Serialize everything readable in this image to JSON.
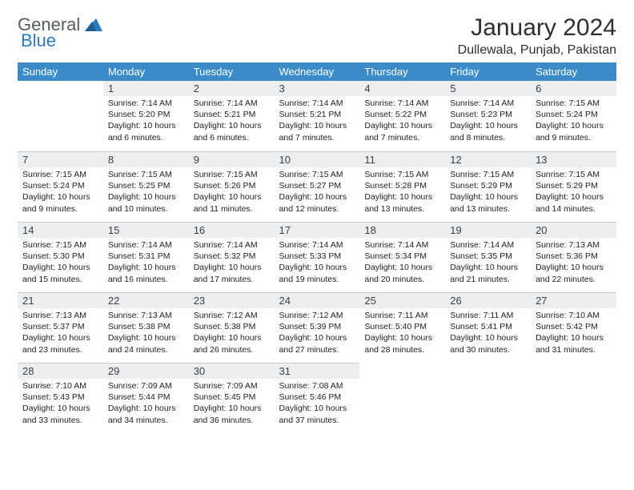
{
  "logo": {
    "brand1": "General",
    "brand2": "Blue"
  },
  "title": {
    "month": "January 2024",
    "location": "Dullewala, Punjab, Pakistan"
  },
  "colors": {
    "header_bg": "#3b8bc9",
    "header_text": "#ffffff",
    "daynum_bg": "#eceef0",
    "border": "#c5cace",
    "body_text": "#222222"
  },
  "weekdays": [
    "Sunday",
    "Monday",
    "Tuesday",
    "Wednesday",
    "Thursday",
    "Friday",
    "Saturday"
  ],
  "first_weekday_index": 1,
  "days": [
    {
      "n": 1,
      "sr": "7:14 AM",
      "ss": "5:20 PM",
      "dl": "10 hours and 6 minutes."
    },
    {
      "n": 2,
      "sr": "7:14 AM",
      "ss": "5:21 PM",
      "dl": "10 hours and 6 minutes."
    },
    {
      "n": 3,
      "sr": "7:14 AM",
      "ss": "5:21 PM",
      "dl": "10 hours and 7 minutes."
    },
    {
      "n": 4,
      "sr": "7:14 AM",
      "ss": "5:22 PM",
      "dl": "10 hours and 7 minutes."
    },
    {
      "n": 5,
      "sr": "7:14 AM",
      "ss": "5:23 PM",
      "dl": "10 hours and 8 minutes."
    },
    {
      "n": 6,
      "sr": "7:15 AM",
      "ss": "5:24 PM",
      "dl": "10 hours and 9 minutes."
    },
    {
      "n": 7,
      "sr": "7:15 AM",
      "ss": "5:24 PM",
      "dl": "10 hours and 9 minutes."
    },
    {
      "n": 8,
      "sr": "7:15 AM",
      "ss": "5:25 PM",
      "dl": "10 hours and 10 minutes."
    },
    {
      "n": 9,
      "sr": "7:15 AM",
      "ss": "5:26 PM",
      "dl": "10 hours and 11 minutes."
    },
    {
      "n": 10,
      "sr": "7:15 AM",
      "ss": "5:27 PM",
      "dl": "10 hours and 12 minutes."
    },
    {
      "n": 11,
      "sr": "7:15 AM",
      "ss": "5:28 PM",
      "dl": "10 hours and 13 minutes."
    },
    {
      "n": 12,
      "sr": "7:15 AM",
      "ss": "5:29 PM",
      "dl": "10 hours and 13 minutes."
    },
    {
      "n": 13,
      "sr": "7:15 AM",
      "ss": "5:29 PM",
      "dl": "10 hours and 14 minutes."
    },
    {
      "n": 14,
      "sr": "7:15 AM",
      "ss": "5:30 PM",
      "dl": "10 hours and 15 minutes."
    },
    {
      "n": 15,
      "sr": "7:14 AM",
      "ss": "5:31 PM",
      "dl": "10 hours and 16 minutes."
    },
    {
      "n": 16,
      "sr": "7:14 AM",
      "ss": "5:32 PM",
      "dl": "10 hours and 17 minutes."
    },
    {
      "n": 17,
      "sr": "7:14 AM",
      "ss": "5:33 PM",
      "dl": "10 hours and 19 minutes."
    },
    {
      "n": 18,
      "sr": "7:14 AM",
      "ss": "5:34 PM",
      "dl": "10 hours and 20 minutes."
    },
    {
      "n": 19,
      "sr": "7:14 AM",
      "ss": "5:35 PM",
      "dl": "10 hours and 21 minutes."
    },
    {
      "n": 20,
      "sr": "7:13 AM",
      "ss": "5:36 PM",
      "dl": "10 hours and 22 minutes."
    },
    {
      "n": 21,
      "sr": "7:13 AM",
      "ss": "5:37 PM",
      "dl": "10 hours and 23 minutes."
    },
    {
      "n": 22,
      "sr": "7:13 AM",
      "ss": "5:38 PM",
      "dl": "10 hours and 24 minutes."
    },
    {
      "n": 23,
      "sr": "7:12 AM",
      "ss": "5:38 PM",
      "dl": "10 hours and 26 minutes."
    },
    {
      "n": 24,
      "sr": "7:12 AM",
      "ss": "5:39 PM",
      "dl": "10 hours and 27 minutes."
    },
    {
      "n": 25,
      "sr": "7:11 AM",
      "ss": "5:40 PM",
      "dl": "10 hours and 28 minutes."
    },
    {
      "n": 26,
      "sr": "7:11 AM",
      "ss": "5:41 PM",
      "dl": "10 hours and 30 minutes."
    },
    {
      "n": 27,
      "sr": "7:10 AM",
      "ss": "5:42 PM",
      "dl": "10 hours and 31 minutes."
    },
    {
      "n": 28,
      "sr": "7:10 AM",
      "ss": "5:43 PM",
      "dl": "10 hours and 33 minutes."
    },
    {
      "n": 29,
      "sr": "7:09 AM",
      "ss": "5:44 PM",
      "dl": "10 hours and 34 minutes."
    },
    {
      "n": 30,
      "sr": "7:09 AM",
      "ss": "5:45 PM",
      "dl": "10 hours and 36 minutes."
    },
    {
      "n": 31,
      "sr": "7:08 AM",
      "ss": "5:46 PM",
      "dl": "10 hours and 37 minutes."
    }
  ],
  "labels": {
    "sunrise": "Sunrise:",
    "sunset": "Sunset:",
    "daylight": "Daylight:"
  }
}
